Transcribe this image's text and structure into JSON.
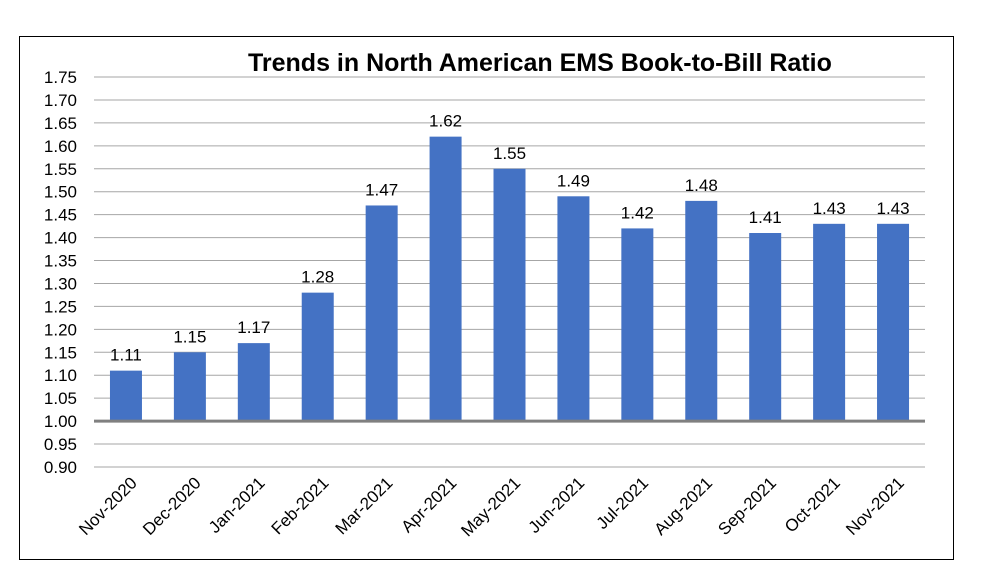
{
  "chart_data": {
    "type": "bar",
    "title": "Trends in North American EMS Book-to-Bill Ratio",
    "xlabel": "",
    "ylabel": "",
    "categories": [
      "Nov-2020",
      "Dec-2020",
      "Jan-2021",
      "Feb-2021",
      "Mar-2021",
      "Apr-2021",
      "May-2021",
      "Jun-2021",
      "Jul-2021",
      "Aug-2021",
      "Sep-2021",
      "Oct-2021",
      "Nov-2021"
    ],
    "values": [
      1.11,
      1.15,
      1.17,
      1.28,
      1.47,
      1.62,
      1.55,
      1.49,
      1.42,
      1.48,
      1.41,
      1.43,
      1.43
    ],
    "data_labels": [
      "1.11",
      "1.15",
      "1.17",
      "1.28",
      "1.47",
      "1.62",
      "1.55",
      "1.49",
      "1.42",
      "1.48",
      "1.41",
      "1.43",
      "1.43"
    ],
    "ylim": [
      0.9,
      1.75
    ],
    "yticks": [
      "0.90",
      "0.95",
      "1.00",
      "1.05",
      "1.10",
      "1.15",
      "1.20",
      "1.25",
      "1.30",
      "1.35",
      "1.40",
      "1.45",
      "1.50",
      "1.55",
      "1.60",
      "1.65",
      "1.70",
      "1.75"
    ],
    "baseline": 1.0,
    "grid": true,
    "legend": "none",
    "bar_color": "#4472C4",
    "grid_color": "#A6A6A6",
    "baseline_color": "#808080"
  }
}
